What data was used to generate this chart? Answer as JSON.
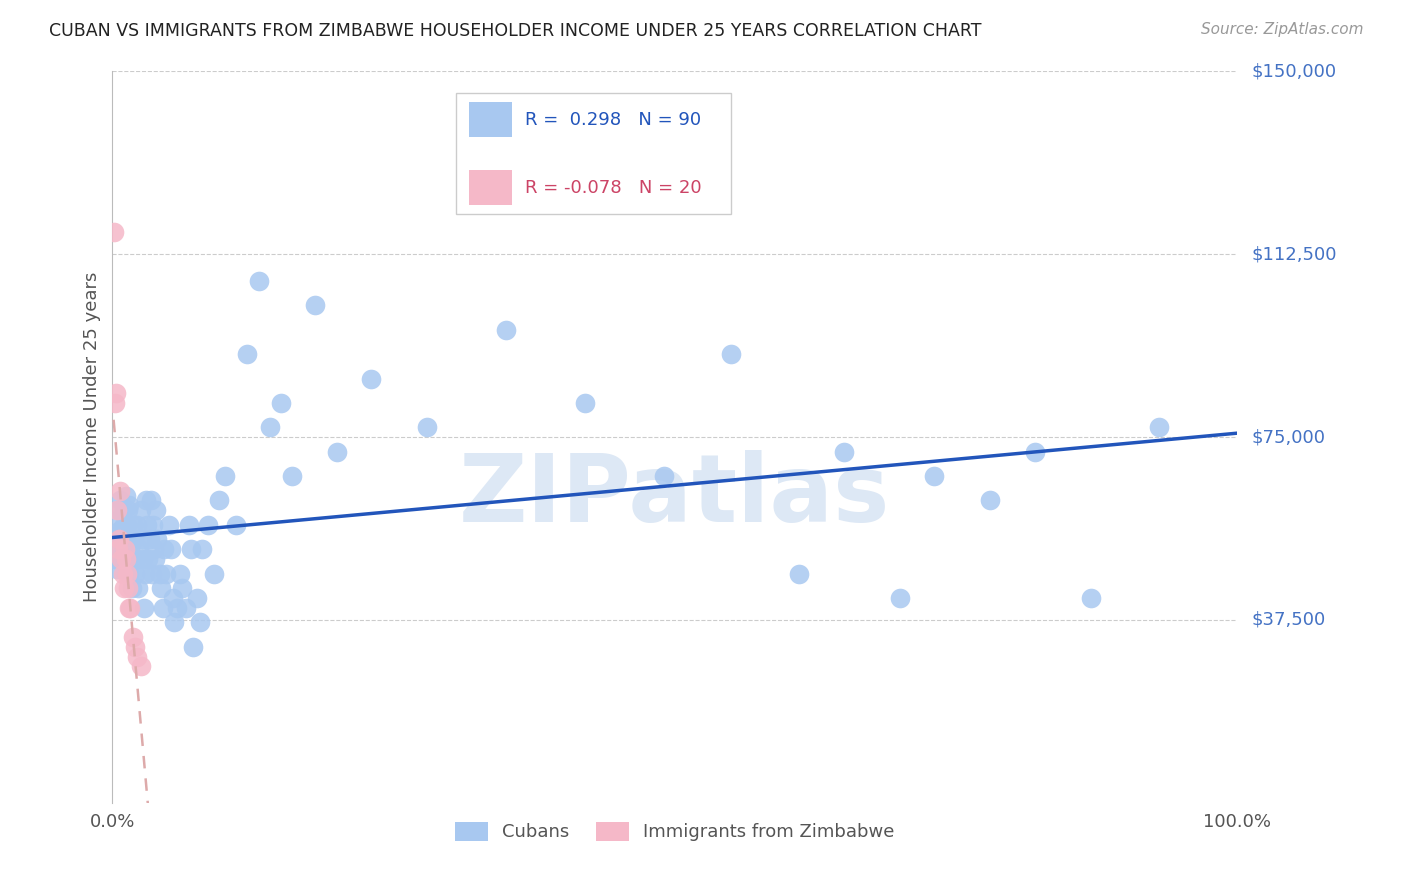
{
  "title": "CUBAN VS IMMIGRANTS FROM ZIMBABWE HOUSEHOLDER INCOME UNDER 25 YEARS CORRELATION CHART",
  "source": "Source: ZipAtlas.com",
  "ylabel": "Householder Income Under 25 years",
  "xlim": [
    0,
    1.0
  ],
  "ylim": [
    0,
    150000
  ],
  "ytick_vals": [
    37500,
    75000,
    112500,
    150000
  ],
  "ytick_labs": [
    "$37,500",
    "$75,000",
    "$112,500",
    "$150,000"
  ],
  "xtick_positions": [
    0.0,
    1.0
  ],
  "xtick_labels": [
    "0.0%",
    "100.0%"
  ],
  "legend1_r": "0.298",
  "legend1_n": "90",
  "legend2_r": "-0.078",
  "legend2_n": "20",
  "color_cuban": "#a8c8f0",
  "color_zimbabwe": "#f5b8c8",
  "line_color_cuban": "#2255bb",
  "line_color_zimbabwe": "#ddaaaa",
  "watermark": "ZIPatlas",
  "cuban_x": [
    0.002,
    0.003,
    0.004,
    0.005,
    0.005,
    0.006,
    0.007,
    0.007,
    0.008,
    0.009,
    0.01,
    0.01,
    0.011,
    0.012,
    0.012,
    0.013,
    0.014,
    0.015,
    0.015,
    0.016,
    0.017,
    0.018,
    0.018,
    0.019,
    0.02,
    0.021,
    0.022,
    0.023,
    0.024,
    0.025,
    0.026,
    0.027,
    0.028,
    0.029,
    0.03,
    0.031,
    0.032,
    0.033,
    0.034,
    0.035,
    0.036,
    0.037,
    0.038,
    0.039,
    0.04,
    0.042,
    0.043,
    0.045,
    0.046,
    0.048,
    0.05,
    0.052,
    0.054,
    0.055,
    0.057,
    0.06,
    0.062,
    0.065,
    0.068,
    0.07,
    0.072,
    0.075,
    0.078,
    0.08,
    0.085,
    0.09,
    0.095,
    0.1,
    0.11,
    0.12,
    0.13,
    0.14,
    0.15,
    0.16,
    0.18,
    0.2,
    0.23,
    0.28,
    0.35,
    0.42,
    0.49,
    0.55,
    0.61,
    0.65,
    0.7,
    0.73,
    0.78,
    0.82,
    0.87,
    0.93
  ],
  "cuban_y": [
    50000,
    52000,
    48000,
    55000,
    58000,
    60000,
    56000,
    62000,
    50000,
    54000,
    57000,
    60000,
    52000,
    55000,
    63000,
    57000,
    60000,
    47000,
    61000,
    52000,
    44000,
    57000,
    50000,
    54000,
    47000,
    50000,
    57000,
    44000,
    52000,
    60000,
    54000,
    50000,
    40000,
    47000,
    62000,
    57000,
    50000,
    54000,
    62000,
    47000,
    57000,
    52000,
    50000,
    60000,
    54000,
    47000,
    44000,
    40000,
    52000,
    47000,
    57000,
    52000,
    42000,
    37000,
    40000,
    47000,
    44000,
    40000,
    57000,
    52000,
    32000,
    42000,
    37000,
    52000,
    57000,
    47000,
    62000,
    67000,
    57000,
    92000,
    107000,
    77000,
    82000,
    67000,
    102000,
    72000,
    87000,
    77000,
    97000,
    82000,
    67000,
    92000,
    47000,
    72000,
    42000,
    67000,
    62000,
    72000,
    42000,
    77000
  ],
  "zimbabwe_x": [
    0.001,
    0.002,
    0.003,
    0.004,
    0.005,
    0.006,
    0.007,
    0.008,
    0.009,
    0.01,
    0.011,
    0.012,
    0.013,
    0.014,
    0.015,
    0.016,
    0.018,
    0.02,
    0.022,
    0.025
  ],
  "zimbabwe_y": [
    117000,
    82000,
    84000,
    60000,
    52000,
    54000,
    64000,
    50000,
    47000,
    44000,
    52000,
    50000,
    47000,
    44000,
    40000,
    40000,
    34000,
    32000,
    30000,
    28000
  ]
}
